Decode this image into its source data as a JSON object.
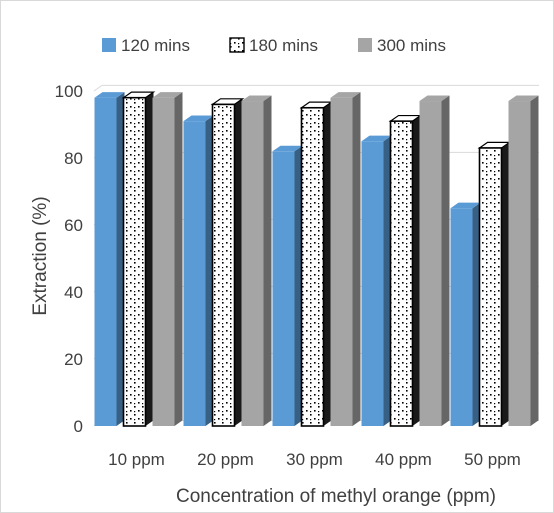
{
  "chart_data": {
    "type": "bar",
    "title": "",
    "xlabel": "Concentration of methyl orange (ppm)",
    "ylabel": "Extraction (%)",
    "categories": [
      "10 ppm",
      "20 ppm",
      "30 ppm",
      "40 ppm",
      "50 ppm"
    ],
    "ylim": [
      0,
      100
    ],
    "yticks": [
      0,
      20,
      40,
      60,
      80,
      100
    ],
    "grid": true,
    "legend_position": "top",
    "series": [
      {
        "name": "120 mins",
        "values": [
          98,
          91,
          82,
          85,
          65
        ],
        "color": "#5b9bd5",
        "pattern": "solid"
      },
      {
        "name": "180 mins",
        "values": [
          98,
          96,
          95,
          91,
          83
        ],
        "color": "#ffffff",
        "pattern": "dotted"
      },
      {
        "name": "300 mins",
        "values": [
          98,
          97,
          98,
          97,
          97
        ],
        "color": "#a5a5a5",
        "pattern": "solid"
      }
    ]
  }
}
